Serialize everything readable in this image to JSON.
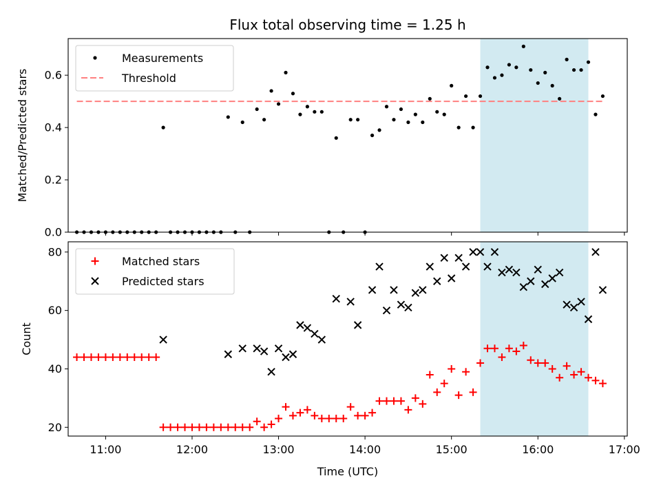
{
  "chart_data": [
    {
      "type": "scatter",
      "title": "Flux total observing time = 1.25 h",
      "xlabel": "",
      "ylabel": "Matched/Predicted stars",
      "xlim": [
        "10:34",
        "17:02"
      ],
      "ylim": [
        0,
        0.74
      ],
      "yticks": [
        "0.0",
        "0.2",
        "0.4",
        "0.6"
      ],
      "ytick_values": [
        0,
        0.2,
        0.4,
        0.6
      ],
      "highlight_span": {
        "x": [
          "15:20",
          "16:35"
        ],
        "color": "#add8e6"
      },
      "threshold": {
        "name": "Threshold",
        "value": 0.5,
        "x": [
          "10:40",
          "16:45"
        ],
        "color": "#ff7f7f"
      },
      "legend": {
        "placement": "top-left",
        "entries": [
          "Measurements",
          "Threshold"
        ]
      },
      "series": [
        {
          "name": "Measurements",
          "color": "#000000",
          "marker": "dot",
          "points": [
            [
              "10:40",
              0
            ],
            [
              "10:45",
              0
            ],
            [
              "10:50",
              0
            ],
            [
              "10:55",
              0
            ],
            [
              "11:00",
              0
            ],
            [
              "11:05",
              0
            ],
            [
              "11:10",
              0
            ],
            [
              "11:15",
              0
            ],
            [
              "11:20",
              0
            ],
            [
              "11:25",
              0
            ],
            [
              "11:30",
              0
            ],
            [
              "11:35",
              0
            ],
            [
              "11:40",
              0.4
            ],
            [
              "11:45",
              0
            ],
            [
              "11:50",
              0
            ],
            [
              "11:55",
              0
            ],
            [
              "12:00",
              0
            ],
            [
              "12:05",
              0
            ],
            [
              "12:10",
              0
            ],
            [
              "12:15",
              0
            ],
            [
              "12:20",
              0
            ],
            [
              "12:25",
              0.44
            ],
            [
              "12:30",
              0
            ],
            [
              "12:35",
              0.42
            ],
            [
              "12:40",
              0
            ],
            [
              "12:45",
              0.47
            ],
            [
              "12:50",
              0.43
            ],
            [
              "12:55",
              0.54
            ],
            [
              "13:00",
              0.49
            ],
            [
              "13:05",
              0.61
            ],
            [
              "13:10",
              0.53
            ],
            [
              "13:15",
              0.45
            ],
            [
              "13:20",
              0.48
            ],
            [
              "13:25",
              0.46
            ],
            [
              "13:30",
              0.46
            ],
            [
              "13:35",
              0
            ],
            [
              "13:40",
              0.36
            ],
            [
              "13:45",
              0
            ],
            [
              "13:50",
              0.43
            ],
            [
              "13:55",
              0.43
            ],
            [
              "14:00",
              0
            ],
            [
              "14:05",
              0.37
            ],
            [
              "14:10",
              0.39
            ],
            [
              "14:15",
              0.48
            ],
            [
              "14:20",
              0.43
            ],
            [
              "14:25",
              0.47
            ],
            [
              "14:30",
              0.42
            ],
            [
              "14:35",
              0.45
            ],
            [
              "14:40",
              0.42
            ],
            [
              "14:45",
              0.51
            ],
            [
              "14:50",
              0.46
            ],
            [
              "14:55",
              0.45
            ],
            [
              "15:00",
              0.56
            ],
            [
              "15:05",
              0.4
            ],
            [
              "15:10",
              0.52
            ],
            [
              "15:15",
              0.4
            ],
            [
              "15:20",
              0.52
            ],
            [
              "15:25",
              0.63
            ],
            [
              "15:30",
              0.59
            ],
            [
              "15:35",
              0.6
            ],
            [
              "15:40",
              0.64
            ],
            [
              "15:45",
              0.63
            ],
            [
              "15:50",
              0.71
            ],
            [
              "15:55",
              0.62
            ],
            [
              "16:00",
              0.57
            ],
            [
              "16:05",
              0.61
            ],
            [
              "16:10",
              0.56
            ],
            [
              "16:15",
              0.51
            ],
            [
              "16:20",
              0.66
            ],
            [
              "16:25",
              0.62
            ],
            [
              "16:30",
              0.62
            ],
            [
              "16:35",
              0.65
            ],
            [
              "16:40",
              0.45
            ],
            [
              "16:45",
              0.52
            ]
          ]
        }
      ]
    },
    {
      "type": "scatter",
      "title": "",
      "xlabel": "Time (UTC)",
      "ylabel": "Count",
      "xlim": [
        "10:34",
        "17:02"
      ],
      "ylim": [
        17,
        83.5
      ],
      "yticks": [
        "20",
        "40",
        "60",
        "80"
      ],
      "ytick_values": [
        20,
        40,
        60,
        80
      ],
      "xticks": [
        "11:00",
        "12:00",
        "13:00",
        "14:00",
        "15:00",
        "16:00",
        "17:00"
      ],
      "highlight_span": {
        "x": [
          "15:20",
          "16:35"
        ],
        "color": "#add8e6"
      },
      "legend": {
        "placement": "top-left",
        "entries": [
          "Matched stars",
          "Predicted stars"
        ]
      },
      "series": [
        {
          "name": "Matched stars",
          "color": "#ff0000",
          "marker": "plus",
          "points": [
            [
              "10:40",
              44
            ],
            [
              "10:45",
              44
            ],
            [
              "10:50",
              44
            ],
            [
              "10:55",
              44
            ],
            [
              "11:00",
              44
            ],
            [
              "11:05",
              44
            ],
            [
              "11:10",
              44
            ],
            [
              "11:15",
              44
            ],
            [
              "11:20",
              44
            ],
            [
              "11:25",
              44
            ],
            [
              "11:30",
              44
            ],
            [
              "11:35",
              44
            ],
            [
              "11:40",
              20
            ],
            [
              "11:45",
              20
            ],
            [
              "11:50",
              20
            ],
            [
              "11:55",
              20
            ],
            [
              "12:00",
              20
            ],
            [
              "12:05",
              20
            ],
            [
              "12:10",
              20
            ],
            [
              "12:15",
              20
            ],
            [
              "12:20",
              20
            ],
            [
              "12:25",
              20
            ],
            [
              "12:30",
              20
            ],
            [
              "12:35",
              20
            ],
            [
              "12:40",
              20
            ],
            [
              "12:45",
              22
            ],
            [
              "12:50",
              20
            ],
            [
              "12:55",
              21
            ],
            [
              "13:00",
              23
            ],
            [
              "13:05",
              27
            ],
            [
              "13:10",
              24
            ],
            [
              "13:15",
              25
            ],
            [
              "13:20",
              26
            ],
            [
              "13:25",
              24
            ],
            [
              "13:30",
              23
            ],
            [
              "13:35",
              23
            ],
            [
              "13:40",
              23
            ],
            [
              "13:45",
              23
            ],
            [
              "13:50",
              27
            ],
            [
              "13:55",
              24
            ],
            [
              "14:00",
              24
            ],
            [
              "14:05",
              25
            ],
            [
              "14:10",
              29
            ],
            [
              "14:15",
              29
            ],
            [
              "14:20",
              29
            ],
            [
              "14:25",
              29
            ],
            [
              "14:30",
              26
            ],
            [
              "14:35",
              30
            ],
            [
              "14:40",
              28
            ],
            [
              "14:45",
              38
            ],
            [
              "14:50",
              32
            ],
            [
              "14:55",
              35
            ],
            [
              "15:00",
              40
            ],
            [
              "15:05",
              31
            ],
            [
              "15:10",
              39
            ],
            [
              "15:15",
              32
            ],
            [
              "15:20",
              42
            ],
            [
              "15:25",
              47
            ],
            [
              "15:30",
              47
            ],
            [
              "15:35",
              44
            ],
            [
              "15:40",
              47
            ],
            [
              "15:45",
              46
            ],
            [
              "15:50",
              48
            ],
            [
              "15:55",
              43
            ],
            [
              "16:00",
              42
            ],
            [
              "16:05",
              42
            ],
            [
              "16:10",
              40
            ],
            [
              "16:15",
              37
            ],
            [
              "16:20",
              41
            ],
            [
              "16:25",
              38
            ],
            [
              "16:30",
              39
            ],
            [
              "16:35",
              37
            ],
            [
              "16:40",
              36
            ],
            [
              "16:45",
              35
            ]
          ]
        },
        {
          "name": "Predicted stars",
          "color": "#000000",
          "marker": "x",
          "points": [
            [
              "11:40",
              50
            ],
            [
              "12:25",
              45
            ],
            [
              "12:35",
              47
            ],
            [
              "12:45",
              47
            ],
            [
              "12:50",
              46
            ],
            [
              "12:55",
              39
            ],
            [
              "13:00",
              47
            ],
            [
              "13:05",
              44
            ],
            [
              "13:10",
              45
            ],
            [
              "13:15",
              55
            ],
            [
              "13:20",
              54
            ],
            [
              "13:25",
              52
            ],
            [
              "13:30",
              50
            ],
            [
              "13:40",
              64
            ],
            [
              "13:50",
              63
            ],
            [
              "13:55",
              55
            ],
            [
              "14:05",
              67
            ],
            [
              "14:10",
              75
            ],
            [
              "14:15",
              60
            ],
            [
              "14:20",
              67
            ],
            [
              "14:25",
              62
            ],
            [
              "14:30",
              61
            ],
            [
              "14:35",
              66
            ],
            [
              "14:40",
              67
            ],
            [
              "14:45",
              75
            ],
            [
              "14:50",
              70
            ],
            [
              "14:55",
              78
            ],
            [
              "15:00",
              71
            ],
            [
              "15:05",
              78
            ],
            [
              "15:10",
              75
            ],
            [
              "15:15",
              80
            ],
            [
              "15:20",
              80
            ],
            [
              "15:25",
              75
            ],
            [
              "15:30",
              80
            ],
            [
              "15:35",
              73
            ],
            [
              "15:40",
              74
            ],
            [
              "15:45",
              73
            ],
            [
              "15:50",
              68
            ],
            [
              "15:55",
              70
            ],
            [
              "16:00",
              74
            ],
            [
              "16:05",
              69
            ],
            [
              "16:10",
              71
            ],
            [
              "16:15",
              73
            ],
            [
              "16:20",
              62
            ],
            [
              "16:25",
              61
            ],
            [
              "16:30",
              63
            ],
            [
              "16:35",
              57
            ],
            [
              "16:40",
              80
            ],
            [
              "16:45",
              67
            ]
          ]
        }
      ]
    }
  ]
}
